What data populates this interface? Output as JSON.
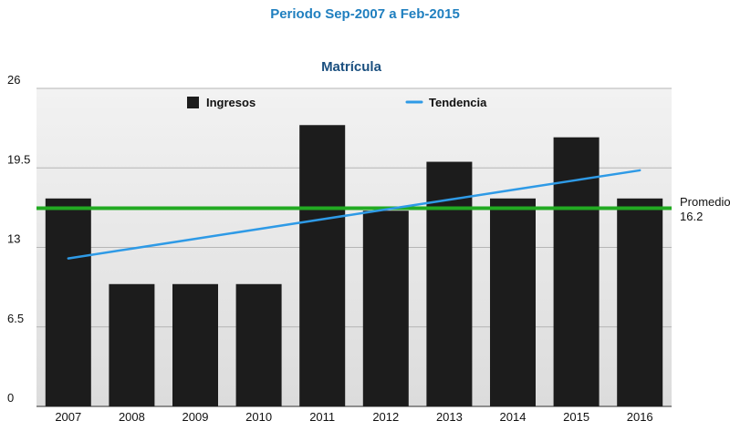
{
  "header": {
    "title": "Periodo Sep-2007 a Feb-2015",
    "subtitle": "Matrícula"
  },
  "chart_data": {
    "type": "bar",
    "title": "Matrícula",
    "categories": [
      "2007",
      "2008",
      "2009",
      "2010",
      "2011",
      "2012",
      "2013",
      "2014",
      "2015",
      "2016"
    ],
    "series": [
      {
        "name": "Ingresos",
        "type": "bar",
        "values": [
          17,
          10,
          10,
          10,
          23,
          16,
          20,
          17,
          22,
          17
        ],
        "color": "#1c1c1c"
      },
      {
        "name": "Tendencia",
        "type": "line",
        "values": [
          12.1,
          12.9,
          13.7,
          14.5,
          15.3,
          16.1,
          16.9,
          17.7,
          18.5,
          19.3
        ],
        "color": "#2e9ae6"
      }
    ],
    "average": {
      "label": "Promedio",
      "value_text": "16.2",
      "value": 16.2,
      "color": "#22aa22"
    },
    "ylim": [
      0,
      26
    ],
    "yticks": [
      0,
      6.5,
      13,
      19.5,
      26
    ],
    "ytick_labels": [
      "0",
      "6.5",
      "13",
      "19.5",
      "26"
    ],
    "grid": true,
    "legend_position": "top"
  }
}
